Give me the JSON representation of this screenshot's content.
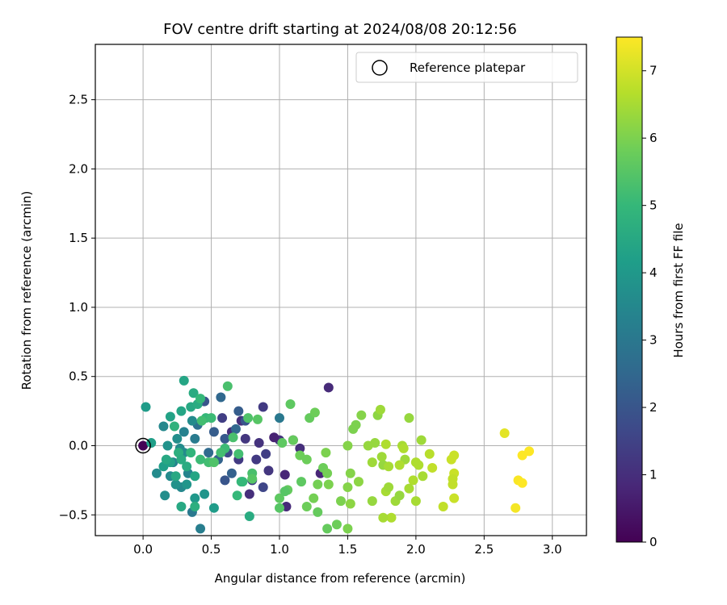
{
  "chart_data": {
    "type": "scatter",
    "title": "FOV centre drift starting at 2024/08/08 20:12:56",
    "xlabel": "Angular distance from reference (arcmin)",
    "ylabel": "Rotation from reference (arcmin)",
    "xlim": [
      -0.35,
      3.25
    ],
    "ylim": [
      -0.65,
      2.9
    ],
    "xticks": [
      0.0,
      0.5,
      1.0,
      1.5,
      2.0,
      2.5,
      3.0
    ],
    "xtick_labels": [
      "0.0",
      "0.5",
      "1.0",
      "1.5",
      "2.0",
      "2.5",
      "3.0"
    ],
    "yticks": [
      -0.5,
      0.0,
      0.5,
      1.0,
      1.5,
      2.0,
      2.5
    ],
    "ytick_labels": [
      "−0.5",
      "0.0",
      "0.5",
      "1.0",
      "1.5",
      "2.0",
      "2.5"
    ],
    "grid": true,
    "legend": {
      "position": "top-right",
      "entries": [
        "Reference platepar"
      ]
    },
    "reference_point": {
      "x": 0.0,
      "y": 0.0
    },
    "colorbar": {
      "label": "Hours from first FF file",
      "colormap": "viridis",
      "range": [
        0,
        7.5
      ],
      "ticks": [
        0,
        1,
        2,
        3,
        4,
        5,
        6,
        7
      ],
      "tick_labels": [
        "0",
        "1",
        "2",
        "3",
        "4",
        "5",
        "6",
        "7"
      ],
      "stops": [
        "#440154",
        "#482878",
        "#3e4989",
        "#31688e",
        "#26828e",
        "#1f9e89",
        "#35b779",
        "#6ece58",
        "#b5de2b",
        "#fde725"
      ]
    },
    "points": [
      [
        0.0,
        0.0,
        0.02
      ],
      [
        1.36,
        0.42,
        0.9
      ],
      [
        0.72,
        0.18,
        1.0
      ],
      [
        0.85,
        0.02,
        1.1
      ],
      [
        0.78,
        -0.35,
        1.0
      ],
      [
        0.92,
        -0.18,
        1.2
      ],
      [
        1.04,
        -0.21,
        0.8
      ],
      [
        1.05,
        -0.44,
        0.9
      ],
      [
        1.0,
        0.04,
        1.1
      ],
      [
        0.65,
        0.1,
        1.0
      ],
      [
        0.7,
        -0.1,
        1.3
      ],
      [
        0.75,
        0.05,
        1.2
      ],
      [
        0.88,
        0.28,
        1.3
      ],
      [
        0.58,
        0.2,
        1.4
      ],
      [
        1.15,
        -0.02,
        1.0
      ],
      [
        0.96,
        0.06,
        0.7
      ],
      [
        1.1,
        0.04,
        0.6
      ],
      [
        1.3,
        -0.2,
        0.8
      ],
      [
        0.8,
        -0.25,
        1.5
      ],
      [
        0.88,
        -0.3,
        1.6
      ],
      [
        0.62,
        -0.05,
        1.7
      ],
      [
        0.83,
        -0.1,
        1.3
      ],
      [
        0.9,
        -0.06,
        1.4
      ],
      [
        0.45,
        0.32,
        2.0
      ],
      [
        0.52,
        0.1,
        2.2
      ],
      [
        0.55,
        -0.1,
        2.4
      ],
      [
        0.6,
        0.05,
        2.1
      ],
      [
        0.65,
        -0.2,
        2.3
      ],
      [
        0.48,
        -0.05,
        2.6
      ],
      [
        0.57,
        0.35,
        2.5
      ],
      [
        0.7,
        0.25,
        2.2
      ],
      [
        0.4,
        0.15,
        2.8
      ],
      [
        0.36,
        -0.48,
        3.0
      ],
      [
        0.42,
        -0.6,
        3.2
      ],
      [
        0.6,
        -0.25,
        2.0
      ],
      [
        0.75,
        0.18,
        2.0
      ],
      [
        0.68,
        0.12,
        2.5
      ],
      [
        1.0,
        0.2,
        3.0
      ],
      [
        0.38,
        0.05,
        3.1
      ],
      [
        0.3,
        0.1,
        3.3
      ],
      [
        0.33,
        -0.2,
        3.4
      ],
      [
        0.28,
        -0.3,
        3.5
      ],
      [
        0.2,
        -0.22,
        3.6
      ],
      [
        0.25,
        0.05,
        3.7
      ],
      [
        0.15,
        0.14,
        3.5
      ],
      [
        0.18,
        0.0,
        3.8
      ],
      [
        0.22,
        -0.12,
        3.4
      ],
      [
        0.27,
        -0.02,
        3.6
      ],
      [
        0.32,
        -0.28,
        3.9
      ],
      [
        0.38,
        -0.38,
        4.0
      ],
      [
        0.45,
        -0.35,
        3.9
      ],
      [
        0.52,
        -0.45,
        4.1
      ],
      [
        0.16,
        -0.36,
        3.7
      ],
      [
        0.1,
        -0.2,
        3.6
      ],
      [
        0.24,
        -0.28,
        3.8
      ],
      [
        0.3,
        -0.05,
        3.6
      ],
      [
        0.36,
        0.18,
        3.6
      ],
      [
        0.02,
        0.28,
        4.1
      ],
      [
        0.06,
        0.02,
        4.2
      ],
      [
        0.15,
        -0.15,
        4.2
      ],
      [
        0.2,
        0.21,
        4.3
      ],
      [
        0.28,
        0.25,
        4.4
      ],
      [
        0.35,
        0.28,
        4.5
      ],
      [
        0.4,
        0.3,
        4.6
      ],
      [
        0.3,
        0.47,
        4.4
      ],
      [
        0.37,
        0.38,
        4.6
      ],
      [
        0.23,
        0.14,
        4.8
      ],
      [
        0.26,
        -0.05,
        4.7
      ],
      [
        0.28,
        -0.1,
        4.6
      ],
      [
        0.38,
        -0.22,
        4.4
      ],
      [
        0.35,
        -0.05,
        4.9
      ],
      [
        0.2,
        -0.12,
        4.3
      ],
      [
        0.24,
        -0.22,
        4.5
      ],
      [
        0.28,
        -0.44,
        4.5
      ],
      [
        0.38,
        -0.44,
        4.7
      ],
      [
        0.17,
        -0.1,
        4.5
      ],
      [
        0.32,
        -0.15,
        4.6
      ],
      [
        0.46,
        0.2,
        5.0
      ],
      [
        0.5,
        0.2,
        5.1
      ],
      [
        0.42,
        0.34,
        5.0
      ],
      [
        0.48,
        -0.12,
        5.2
      ],
      [
        0.62,
        0.43,
        5.3
      ],
      [
        0.73,
        -0.26,
        5.0
      ],
      [
        0.77,
        0.2,
        5.4
      ],
      [
        0.84,
        0.19,
        5.5
      ],
      [
        0.72,
        -0.26,
        5.0
      ],
      [
        0.6,
        -0.02,
        5.1
      ],
      [
        0.78,
        -0.51,
        4.6
      ],
      [
        0.57,
        -0.05,
        5.2
      ],
      [
        0.66,
        0.06,
        5.3
      ],
      [
        0.7,
        -0.06,
        5.2
      ],
      [
        0.8,
        -0.2,
        5.3
      ],
      [
        0.69,
        -0.36,
        5.0
      ],
      [
        0.52,
        -0.12,
        5.4
      ],
      [
        0.42,
        -0.1,
        5.1
      ],
      [
        0.43,
        0.18,
        5.2
      ],
      [
        0.8,
        -0.24,
        5.5
      ],
      [
        1.0,
        -0.38,
        5.6
      ],
      [
        1.0,
        -0.45,
        5.5
      ],
      [
        1.02,
        0.02,
        5.6
      ],
      [
        1.06,
        -0.32,
        5.7
      ],
      [
        1.08,
        0.3,
        5.6
      ],
      [
        1.1,
        0.04,
        5.7
      ],
      [
        1.15,
        -0.07,
        5.8
      ],
      [
        1.16,
        -0.26,
        5.6
      ],
      [
        1.2,
        -0.1,
        5.8
      ],
      [
        1.22,
        0.2,
        5.7
      ],
      [
        1.26,
        0.24,
        5.8
      ],
      [
        1.28,
        -0.28,
        5.9
      ],
      [
        1.25,
        -0.38,
        5.9
      ],
      [
        1.32,
        -0.16,
        5.8
      ],
      [
        1.35,
        -0.6,
        5.7
      ],
      [
        1.36,
        -0.28,
        6.0
      ],
      [
        1.34,
        -0.05,
        6.0
      ],
      [
        1.04,
        -0.33,
        5.5
      ],
      [
        1.2,
        -0.44,
        5.8
      ],
      [
        1.28,
        -0.48,
        5.7
      ],
      [
        1.35,
        -0.2,
        5.9
      ],
      [
        1.5,
        0.0,
        6.1
      ],
      [
        1.5,
        -0.3,
        6.1
      ],
      [
        1.52,
        -0.42,
        6.2
      ],
      [
        1.54,
        0.12,
        6.0
      ],
      [
        1.56,
        0.15,
        6.0
      ],
      [
        1.58,
        -0.26,
        6.2
      ],
      [
        1.6,
        0.22,
        6.1
      ],
      [
        1.5,
        -0.6,
        6.0
      ],
      [
        1.45,
        -0.4,
        6.0
      ],
      [
        1.52,
        -0.2,
        6.1
      ],
      [
        1.42,
        -0.57,
        5.8
      ],
      [
        1.65,
        0.0,
        6.3
      ],
      [
        1.68,
        -0.12,
        6.4
      ],
      [
        1.7,
        0.02,
        6.3
      ],
      [
        1.72,
        0.22,
        6.2
      ],
      [
        1.74,
        0.26,
        6.4
      ],
      [
        1.75,
        -0.08,
        6.4
      ],
      [
        1.76,
        -0.14,
        6.3
      ],
      [
        1.78,
        -0.33,
        6.5
      ],
      [
        1.8,
        -0.3,
        6.4
      ],
      [
        1.8,
        -0.15,
        6.5
      ],
      [
        1.85,
        -0.4,
        6.4
      ],
      [
        1.88,
        -0.36,
        6.3
      ],
      [
        1.9,
        0.0,
        6.5
      ],
      [
        1.92,
        -0.1,
        6.4
      ],
      [
        1.95,
        0.2,
        6.3
      ],
      [
        1.78,
        0.01,
        6.6
      ],
      [
        1.82,
        -0.52,
        6.6
      ],
      [
        1.76,
        -0.52,
        6.5
      ],
      [
        1.68,
        -0.4,
        6.3
      ],
      [
        1.91,
        -0.02,
        6.6
      ],
      [
        1.88,
        -0.14,
        6.6
      ],
      [
        2.0,
        -0.12,
        6.6
      ],
      [
        2.02,
        -0.14,
        6.6
      ],
      [
        2.04,
        0.04,
        6.4
      ],
      [
        2.05,
        -0.22,
        6.5
      ],
      [
        2.1,
        -0.06,
        6.7
      ],
      [
        2.12,
        -0.16,
        6.8
      ],
      [
        2.0,
        -0.4,
        6.5
      ],
      [
        1.98,
        -0.25,
        6.6
      ],
      [
        1.95,
        -0.31,
        6.5
      ],
      [
        2.2,
        -0.44,
        6.8
      ],
      [
        2.28,
        -0.07,
        6.9
      ],
      [
        2.26,
        -0.1,
        6.9
      ],
      [
        2.28,
        -0.2,
        6.9
      ],
      [
        2.28,
        -0.38,
        6.9
      ],
      [
        2.27,
        -0.24,
        6.8
      ],
      [
        2.27,
        -0.28,
        6.8
      ],
      [
        2.65,
        0.09,
        7.2
      ],
      [
        2.73,
        -0.45,
        7.4
      ],
      [
        2.75,
        -0.25,
        7.45
      ],
      [
        2.78,
        -0.27,
        7.5
      ],
      [
        2.78,
        -0.07,
        7.5
      ],
      [
        2.83,
        -0.04,
        7.5
      ]
    ]
  }
}
